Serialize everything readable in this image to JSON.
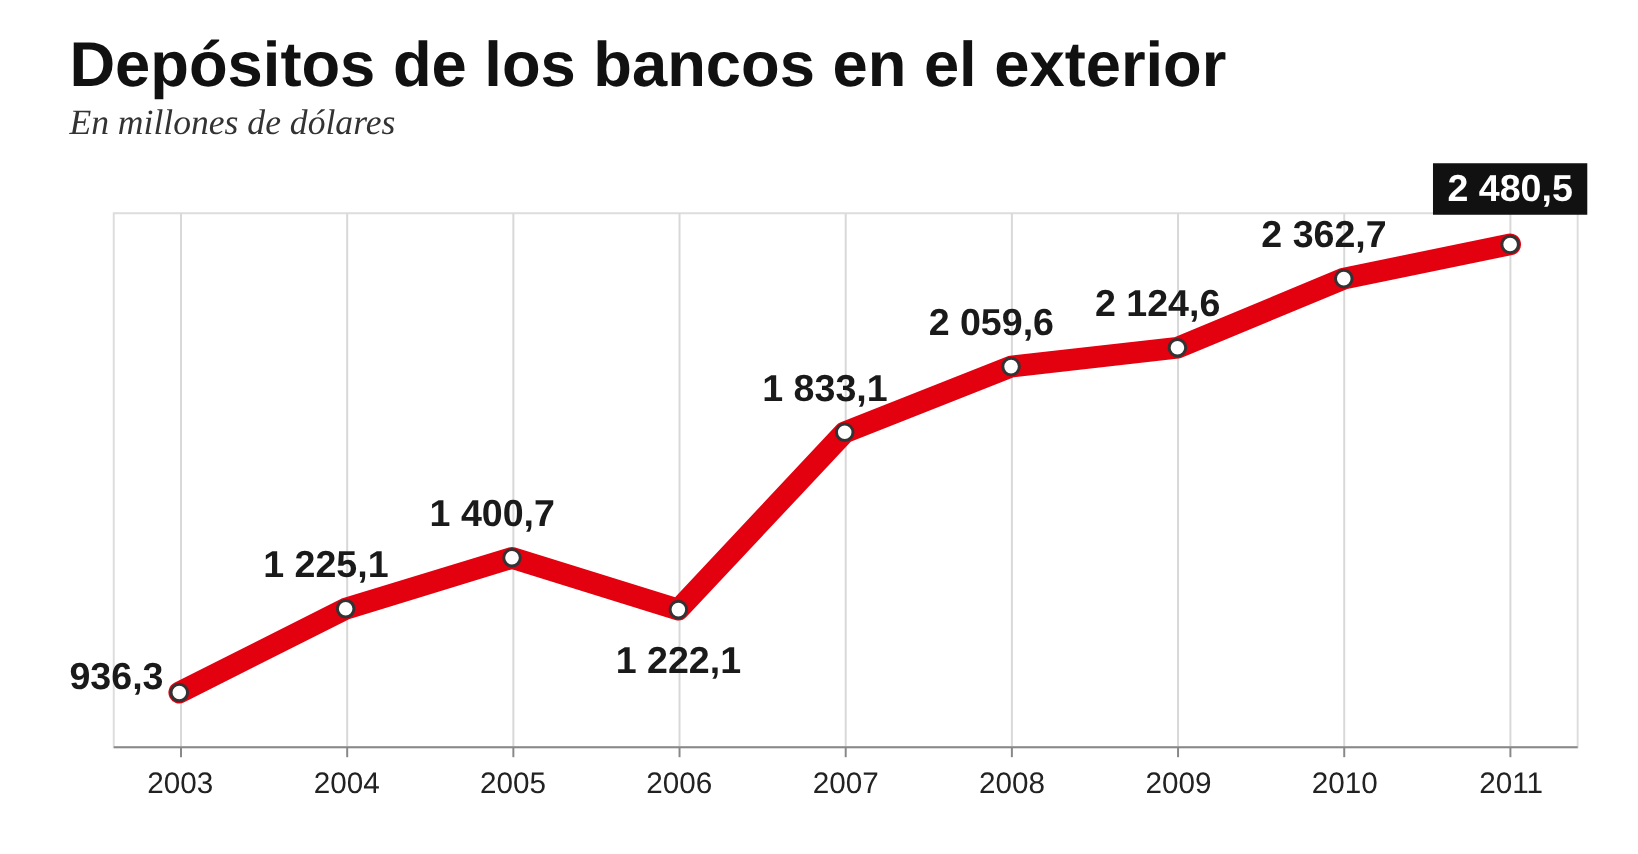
{
  "chart_data": {
    "type": "line",
    "title": "Depósitos de los bancos en el exterior",
    "subtitle": "En millones de dólares",
    "categories": [
      "2003",
      "2004",
      "2005",
      "2006",
      "2007",
      "2008",
      "2009",
      "2010",
      "2011"
    ],
    "series": [
      {
        "color": "#e3000f",
        "values": [
          936.3,
          1225.1,
          1400.7,
          1222.1,
          1833.1,
          2059.6,
          2124.6,
          2362.7,
          2480.5
        ],
        "value_labels": [
          "936,3",
          "1 225,1",
          "1 400,7",
          "1 222,1",
          "1 833,1",
          "2 059,6",
          "2 124,6",
          "2 362,7",
          "2 480,5"
        ]
      }
    ],
    "marker": "circle",
    "grid": "x",
    "line_style": "solid"
  }
}
